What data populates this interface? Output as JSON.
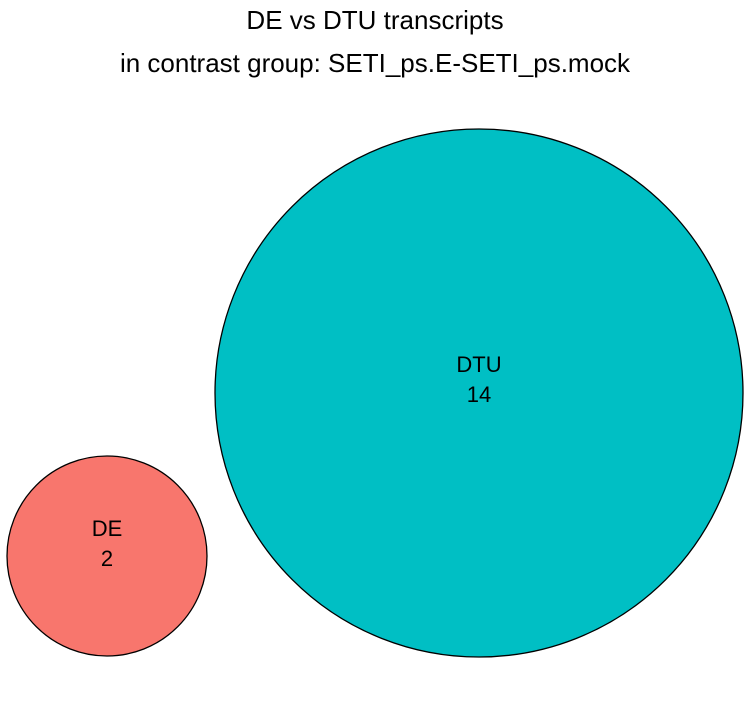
{
  "title": {
    "line1": "DE vs DTU transcripts",
    "line2": "in contrast group: SETI_ps.E-SETI_ps.mock"
  },
  "sets": [
    {
      "id": "de",
      "name": "DE",
      "count": "2",
      "color": "#F8766D"
    },
    {
      "id": "dtu",
      "name": "DTU",
      "count": "14",
      "color": "#00BFC4"
    }
  ],
  "outline_color": "#000000"
}
